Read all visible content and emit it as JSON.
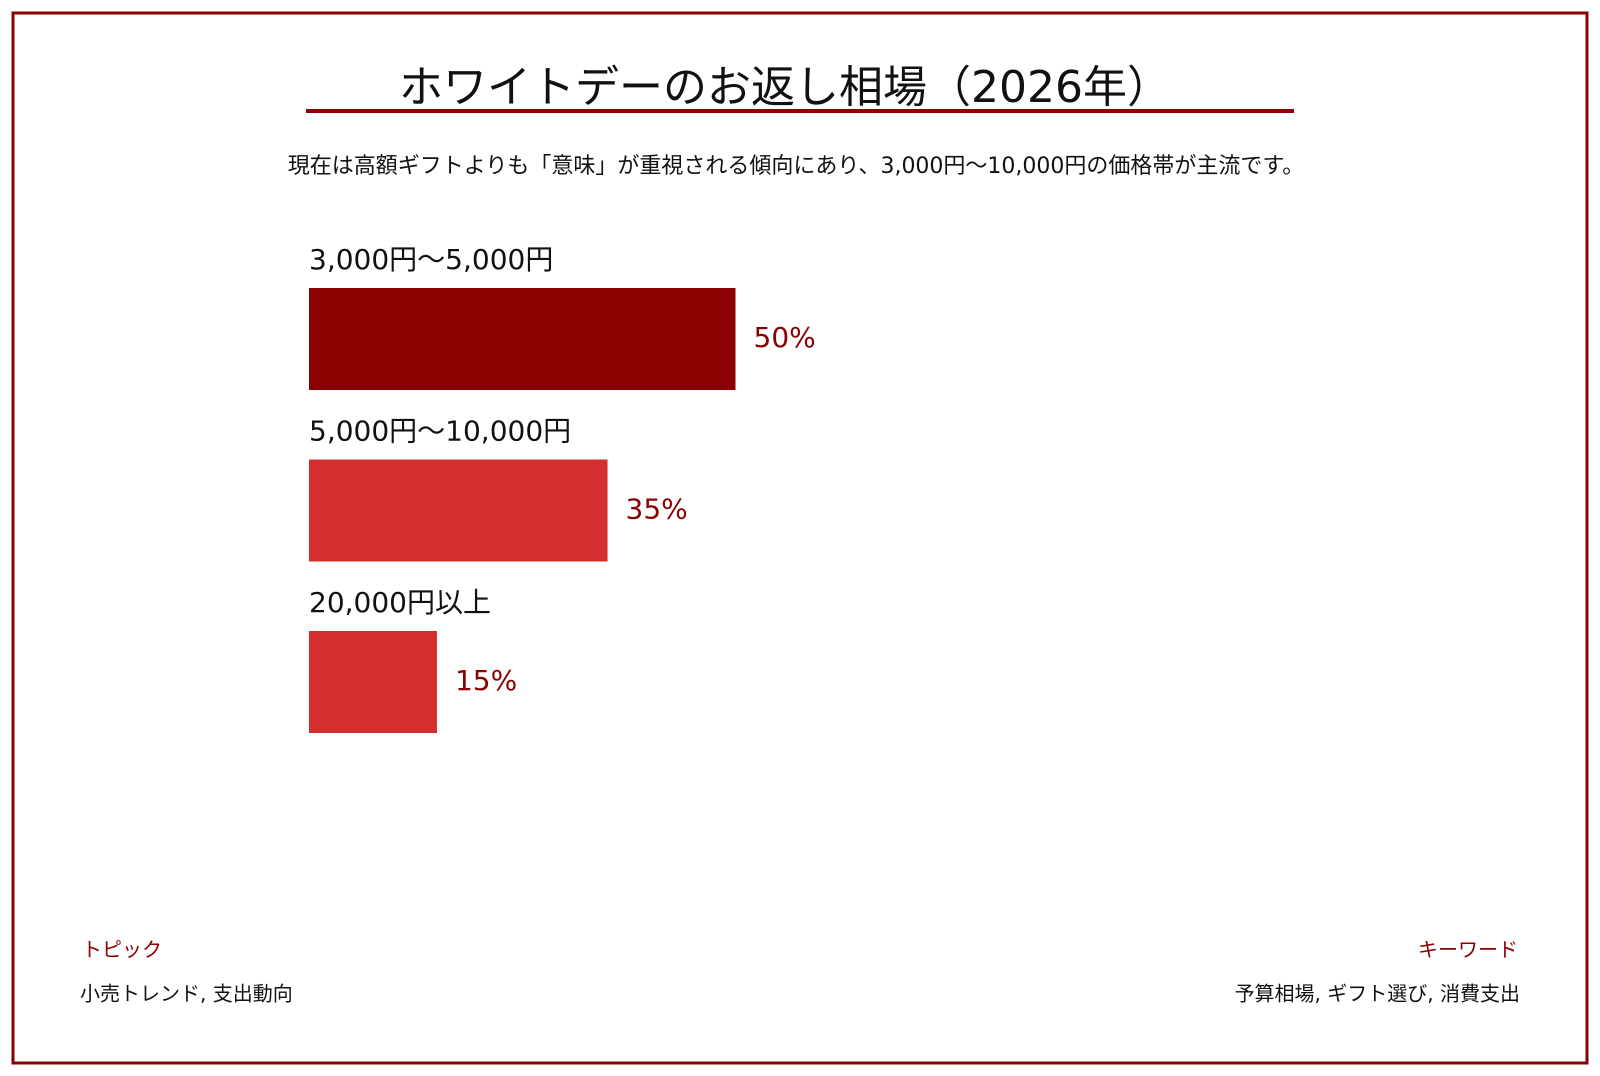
{
  "chart_data": {
    "type": "bar",
    "title": "ホワイトデーのお返し相場（2026年）",
    "subtitle": "現在は高額ギフトよりも「意味」が重視される傾向にあり、3,000円〜10,000円の価格帯が主流です。",
    "categories": [
      "3,000円〜5,000円",
      "5,000円〜10,000円",
      "20,000円以上"
    ],
    "values": [
      50,
      35,
      15
    ],
    "value_labels": [
      "50%",
      "35%",
      "15%"
    ],
    "colors": [
      "#8b0000",
      "#d32f2f",
      "#d32f2f"
    ]
  },
  "footer": {
    "topic_heading": "トピック",
    "topic": "小売トレンド, 支出動向",
    "keyword_heading": "キーワード",
    "keywords": "予算相場, ギフト選び, 消費支出"
  }
}
